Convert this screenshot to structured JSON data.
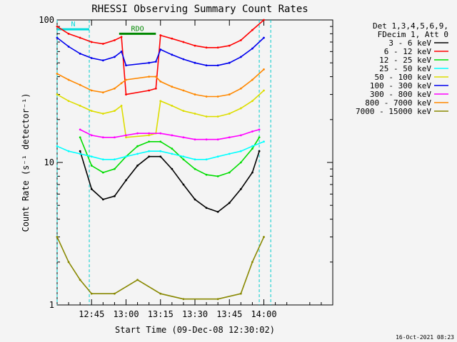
{
  "chart_data": {
    "type": "line",
    "title": "RHESSI Observing Summary Count Rates",
    "ylabel": "Count Rate (s⁻¹ detector⁻¹)",
    "xlabel": "Start Time (09-Dec-08 12:30:02)",
    "yscale": "log",
    "ylim": [
      1,
      100
    ],
    "ytick_labels": [
      "1",
      "10",
      "100"
    ],
    "x_ticks": [
      {
        "t": 15,
        "label": "12:45"
      },
      {
        "t": 30,
        "label": "13:00"
      },
      {
        "t": 45,
        "label": "13:15"
      },
      {
        "t": 60,
        "label": "13:30"
      },
      {
        "t": 75,
        "label": "13:45"
      },
      {
        "t": 90,
        "label": "14:00"
      }
    ],
    "xlim_minutes": [
      0,
      120
    ],
    "legend_header": [
      "Det 1,3,4,5,6,9,",
      "FDecim 1, Att 0"
    ],
    "timestamp": "16-Oct-2021 08:23",
    "flags": [
      {
        "label": "RDO",
        "t0": 27,
        "t1": 43,
        "level": 80,
        "color": "#008800"
      },
      {
        "label": "N",
        "t0": 0,
        "t1": 14,
        "level": 86,
        "color": "#00dddd"
      }
    ],
    "series": [
      {
        "name": "3 - 6 keV",
        "color": "#000000",
        "values": [
          {
            "t": 10,
            "y": 12
          },
          {
            "t": 15,
            "y": 6.5
          },
          {
            "t": 20,
            "y": 5.5
          },
          {
            "t": 25,
            "y": 5.8
          },
          {
            "t": 30,
            "y": 7.5
          },
          {
            "t": 35,
            "y": 9.5
          },
          {
            "t": 40,
            "y": 11
          },
          {
            "t": 45,
            "y": 11
          },
          {
            "t": 50,
            "y": 9
          },
          {
            "t": 55,
            "y": 7
          },
          {
            "t": 60,
            "y": 5.5
          },
          {
            "t": 65,
            "y": 4.8
          },
          {
            "t": 70,
            "y": 4.5
          },
          {
            "t": 75,
            "y": 5.2
          },
          {
            "t": 80,
            "y": 6.5
          },
          {
            "t": 85,
            "y": 8.5
          },
          {
            "t": 88,
            "y": 12
          }
        ]
      },
      {
        "name": "6 - 12 keV",
        "color": "#ff0000",
        "values": [
          {
            "t": 0,
            "y": 90
          },
          {
            "t": 5,
            "y": 80
          },
          {
            "t": 10,
            "y": 75
          },
          {
            "t": 15,
            "y": 70
          },
          {
            "t": 20,
            "y": 68
          },
          {
            "t": 25,
            "y": 72
          },
          {
            "t": 28,
            "y": 76
          },
          {
            "t": 30,
            "y": 30
          },
          {
            "t": 40,
            "y": 32
          },
          {
            "t": 43,
            "y": 33
          },
          {
            "t": 45,
            "y": 78
          },
          {
            "t": 50,
            "y": 74
          },
          {
            "t": 55,
            "y": 70
          },
          {
            "t": 60,
            "y": 66
          },
          {
            "t": 65,
            "y": 64
          },
          {
            "t": 70,
            "y": 64
          },
          {
            "t": 75,
            "y": 66
          },
          {
            "t": 80,
            "y": 72
          },
          {
            "t": 85,
            "y": 85
          },
          {
            "t": 90,
            "y": 100
          }
        ]
      },
      {
        "name": "12 - 25 keV",
        "color": "#00dd00",
        "values": [
          {
            "t": 10,
            "y": 15
          },
          {
            "t": 15,
            "y": 9.5
          },
          {
            "t": 20,
            "y": 8.5
          },
          {
            "t": 25,
            "y": 9
          },
          {
            "t": 30,
            "y": 11
          },
          {
            "t": 35,
            "y": 13
          },
          {
            "t": 40,
            "y": 14
          },
          {
            "t": 45,
            "y": 14
          },
          {
            "t": 50,
            "y": 12.5
          },
          {
            "t": 55,
            "y": 10.5
          },
          {
            "t": 60,
            "y": 9
          },
          {
            "t": 65,
            "y": 8.2
          },
          {
            "t": 70,
            "y": 8
          },
          {
            "t": 75,
            "y": 8.5
          },
          {
            "t": 80,
            "y": 10
          },
          {
            "t": 85,
            "y": 12.5
          },
          {
            "t": 88,
            "y": 15
          }
        ]
      },
      {
        "name": "25 - 50 keV",
        "color": "#00ffff",
        "values": [
          {
            "t": 0,
            "y": 13
          },
          {
            "t": 5,
            "y": 12
          },
          {
            "t": 10,
            "y": 11.5
          },
          {
            "t": 15,
            "y": 11
          },
          {
            "t": 20,
            "y": 10.5
          },
          {
            "t": 25,
            "y": 10.5
          },
          {
            "t": 30,
            "y": 11
          },
          {
            "t": 35,
            "y": 11.5
          },
          {
            "t": 40,
            "y": 12
          },
          {
            "t": 45,
            "y": 12
          },
          {
            "t": 50,
            "y": 11.5
          },
          {
            "t": 55,
            "y": 11
          },
          {
            "t": 60,
            "y": 10.5
          },
          {
            "t": 65,
            "y": 10.5
          },
          {
            "t": 70,
            "y": 11
          },
          {
            "t": 75,
            "y": 11.5
          },
          {
            "t": 80,
            "y": 12
          },
          {
            "t": 85,
            "y": 13
          },
          {
            "t": 90,
            "y": 14
          }
        ]
      },
      {
        "name": "50 - 100 keV",
        "color": "#dddd00",
        "values": [
          {
            "t": 0,
            "y": 30
          },
          {
            "t": 5,
            "y": 27
          },
          {
            "t": 10,
            "y": 25
          },
          {
            "t": 15,
            "y": 23
          },
          {
            "t": 20,
            "y": 22
          },
          {
            "t": 25,
            "y": 23
          },
          {
            "t": 28,
            "y": 25
          },
          {
            "t": 30,
            "y": 15
          },
          {
            "t": 40,
            "y": 15.5
          },
          {
            "t": 43,
            "y": 16
          },
          {
            "t": 45,
            "y": 27
          },
          {
            "t": 50,
            "y": 25
          },
          {
            "t": 55,
            "y": 23
          },
          {
            "t": 60,
            "y": 22
          },
          {
            "t": 65,
            "y": 21
          },
          {
            "t": 70,
            "y": 21
          },
          {
            "t": 75,
            "y": 22
          },
          {
            "t": 80,
            "y": 24
          },
          {
            "t": 85,
            "y": 27
          },
          {
            "t": 90,
            "y": 32
          }
        ]
      },
      {
        "name": "100 - 300 keV",
        "color": "#0000ee",
        "values": [
          {
            "t": 0,
            "y": 75
          },
          {
            "t": 5,
            "y": 65
          },
          {
            "t": 10,
            "y": 58
          },
          {
            "t": 15,
            "y": 54
          },
          {
            "t": 20,
            "y": 52
          },
          {
            "t": 25,
            "y": 55
          },
          {
            "t": 28,
            "y": 60
          },
          {
            "t": 30,
            "y": 48
          },
          {
            "t": 40,
            "y": 50
          },
          {
            "t": 43,
            "y": 51
          },
          {
            "t": 45,
            "y": 62
          },
          {
            "t": 50,
            "y": 57
          },
          {
            "t": 55,
            "y": 53
          },
          {
            "t": 60,
            "y": 50
          },
          {
            "t": 65,
            "y": 48
          },
          {
            "t": 70,
            "y": 48
          },
          {
            "t": 75,
            "y": 50
          },
          {
            "t": 80,
            "y": 55
          },
          {
            "t": 85,
            "y": 63
          },
          {
            "t": 90,
            "y": 75
          }
        ]
      },
      {
        "name": "300 - 800 keV",
        "color": "#ff00ff",
        "values": [
          {
            "t": 10,
            "y": 17
          },
          {
            "t": 15,
            "y": 15.5
          },
          {
            "t": 20,
            "y": 15
          },
          {
            "t": 25,
            "y": 15
          },
          {
            "t": 30,
            "y": 15.5
          },
          {
            "t": 35,
            "y": 16
          },
          {
            "t": 40,
            "y": 16
          },
          {
            "t": 45,
            "y": 16
          },
          {
            "t": 50,
            "y": 15.5
          },
          {
            "t": 55,
            "y": 15
          },
          {
            "t": 60,
            "y": 14.5
          },
          {
            "t": 65,
            "y": 14.5
          },
          {
            "t": 70,
            "y": 14.5
          },
          {
            "t": 75,
            "y": 15
          },
          {
            "t": 80,
            "y": 15.5
          },
          {
            "t": 85,
            "y": 16.5
          },
          {
            "t": 88,
            "y": 17
          }
        ]
      },
      {
        "name": "800 - 7000 keV",
        "color": "#ff8800",
        "values": [
          {
            "t": 0,
            "y": 42
          },
          {
            "t": 5,
            "y": 38
          },
          {
            "t": 10,
            "y": 35
          },
          {
            "t": 15,
            "y": 32
          },
          {
            "t": 20,
            "y": 31
          },
          {
            "t": 25,
            "y": 33
          },
          {
            "t": 28,
            "y": 36
          },
          {
            "t": 30,
            "y": 38
          },
          {
            "t": 40,
            "y": 40
          },
          {
            "t": 43,
            "y": 40
          },
          {
            "t": 45,
            "y": 37
          },
          {
            "t": 50,
            "y": 34
          },
          {
            "t": 55,
            "y": 32
          },
          {
            "t": 60,
            "y": 30
          },
          {
            "t": 65,
            "y": 29
          },
          {
            "t": 70,
            "y": 29
          },
          {
            "t": 75,
            "y": 30
          },
          {
            "t": 80,
            "y": 33
          },
          {
            "t": 85,
            "y": 38
          },
          {
            "t": 90,
            "y": 45
          }
        ]
      },
      {
        "name": "7000 - 15000 keV",
        "color": "#888800",
        "values": [
          {
            "t": 0,
            "y": 3
          },
          {
            "t": 5,
            "y": 2
          },
          {
            "t": 10,
            "y": 1.5
          },
          {
            "t": 15,
            "y": 1.2
          },
          {
            "t": 25,
            "y": 1.2
          },
          {
            "t": 35,
            "y": 1.5
          },
          {
            "t": 45,
            "y": 1.2
          },
          {
            "t": 55,
            "y": 1.1
          },
          {
            "t": 70,
            "y": 1.1
          },
          {
            "t": 80,
            "y": 1.2
          },
          {
            "t": 85,
            "y": 2
          },
          {
            "t": 90,
            "y": 3
          }
        ]
      }
    ]
  }
}
